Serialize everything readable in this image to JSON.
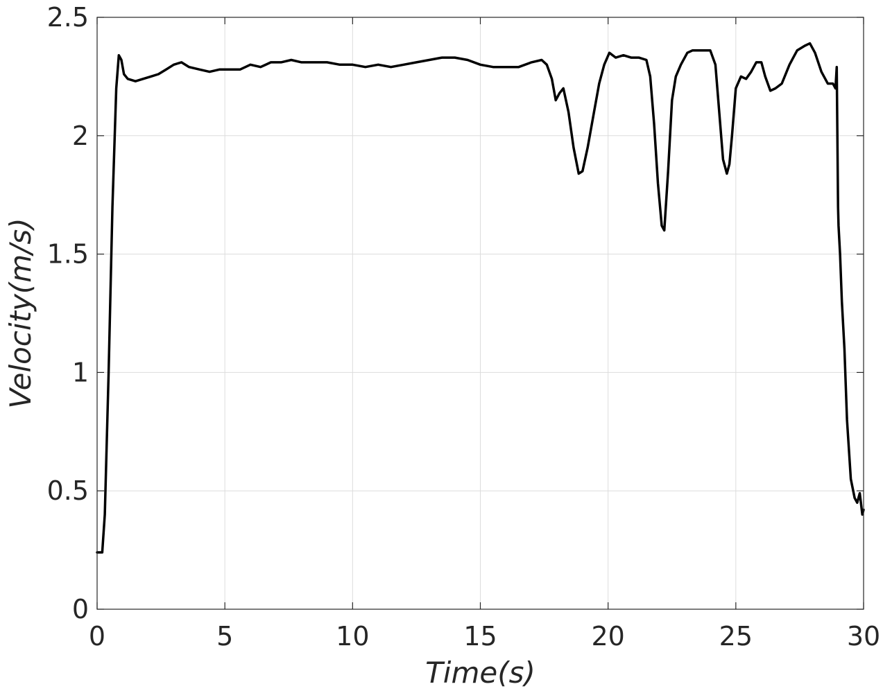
{
  "chart_data": {
    "type": "line",
    "title": "",
    "xlabel": "Time(s)",
    "ylabel": "Velocity(m/s)",
    "xlim": [
      0,
      30
    ],
    "ylim": [
      0,
      2.5
    ],
    "x_ticks": [
      "0",
      "5",
      "10",
      "15",
      "20",
      "25",
      "30"
    ],
    "y_ticks": [
      "0",
      "0.5",
      "1",
      "1.5",
      "2",
      "2.5"
    ],
    "grid": true,
    "legend": "none",
    "line_color": "#000000",
    "series": [
      {
        "x": [
          0,
          0.2,
          0.3,
          0.45,
          0.6,
          0.75,
          0.85,
          0.95,
          1.05,
          1.2,
          1.5,
          1.8,
          2.1,
          2.4,
          2.7,
          3.0,
          3.3,
          3.6,
          4.0,
          4.4,
          4.8,
          5.2,
          5.6,
          6.0,
          6.4,
          6.8,
          7.2,
          7.6,
          8.0,
          8.5,
          9.0,
          9.5,
          10.0,
          10.5,
          11.0,
          11.5,
          12.0,
          12.5,
          13.0,
          13.5,
          14.0,
          14.5,
          15.0,
          15.5,
          16.0,
          16.5,
          17.0,
          17.4,
          17.6,
          17.8,
          17.95,
          18.1,
          18.25,
          18.45,
          18.65,
          18.85,
          19.0,
          19.2,
          19.45,
          19.65,
          19.85,
          20.05,
          20.3,
          20.6,
          20.9,
          21.2,
          21.5,
          21.65,
          21.8,
          21.95,
          22.1,
          22.2,
          22.35,
          22.5,
          22.65,
          22.85,
          23.1,
          23.3,
          23.6,
          24.0,
          24.2,
          24.35,
          24.5,
          24.65,
          24.75,
          24.85,
          25.0,
          25.2,
          25.4,
          25.6,
          25.8,
          26.0,
          26.15,
          26.35,
          26.55,
          26.8,
          27.1,
          27.4,
          27.7,
          27.9,
          28.1,
          28.35,
          28.6,
          28.8,
          28.9,
          28.95,
          29.0,
          29.02,
          29.08,
          29.15,
          29.25,
          29.35,
          29.5,
          29.65,
          29.75,
          29.85,
          29.95,
          30.0
        ],
        "y": [
          0.24,
          0.24,
          0.4,
          1.0,
          1.7,
          2.2,
          2.34,
          2.32,
          2.26,
          2.24,
          2.23,
          2.24,
          2.25,
          2.26,
          2.28,
          2.3,
          2.31,
          2.29,
          2.28,
          2.27,
          2.28,
          2.28,
          2.28,
          2.3,
          2.29,
          2.31,
          2.31,
          2.32,
          2.31,
          2.31,
          2.31,
          2.3,
          2.3,
          2.29,
          2.3,
          2.29,
          2.3,
          2.31,
          2.32,
          2.33,
          2.33,
          2.32,
          2.3,
          2.29,
          2.29,
          2.29,
          2.31,
          2.32,
          2.3,
          2.24,
          2.15,
          2.18,
          2.2,
          2.1,
          1.95,
          1.84,
          1.85,
          1.95,
          2.1,
          2.22,
          2.3,
          2.35,
          2.33,
          2.34,
          2.33,
          2.33,
          2.32,
          2.25,
          2.05,
          1.8,
          1.62,
          1.6,
          1.85,
          2.15,
          2.25,
          2.3,
          2.35,
          2.36,
          2.36,
          2.36,
          2.3,
          2.1,
          1.9,
          1.84,
          1.88,
          2.0,
          2.2,
          2.25,
          2.24,
          2.27,
          2.31,
          2.31,
          2.25,
          2.19,
          2.2,
          2.22,
          2.3,
          2.36,
          2.38,
          2.39,
          2.35,
          2.27,
          2.22,
          2.22,
          2.2,
          2.29,
          1.7,
          1.62,
          1.5,
          1.3,
          1.1,
          0.8,
          0.55,
          0.47,
          0.45,
          0.49,
          0.4,
          0.42
        ]
      }
    ]
  }
}
